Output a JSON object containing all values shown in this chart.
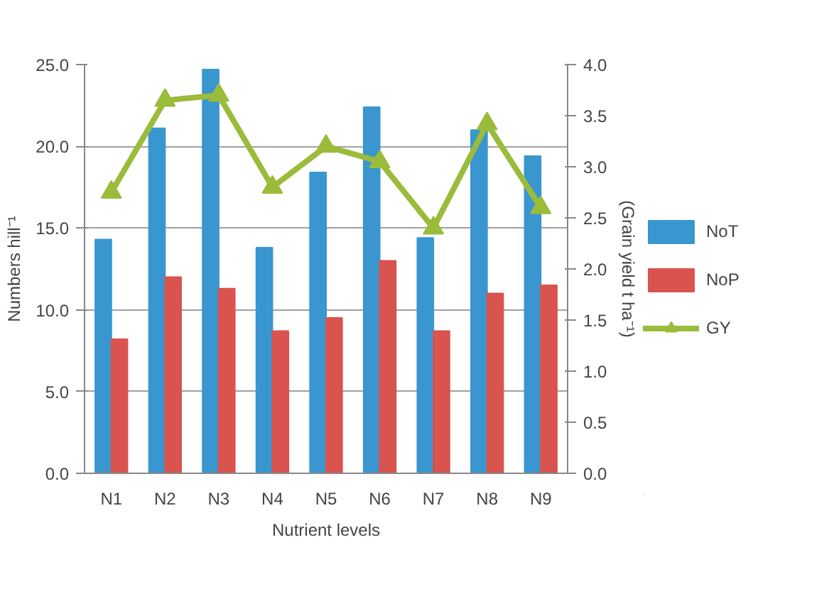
{
  "chart_data": {
    "type": "bar",
    "xlabel": "Nutrient levels",
    "ylabel": "Numbers hill⁻¹",
    "y2label": "(Grain yield t ha⁻¹)",
    "categories": [
      "N1",
      "N2",
      "N3",
      "N4",
      "N5",
      "N6",
      "N7",
      "N8",
      "N9"
    ],
    "series": [
      {
        "name": "NoT",
        "color": "#3a96cf",
        "values": [
          14.3,
          21.1,
          24.7,
          13.8,
          18.4,
          22.4,
          14.4,
          21.0,
          19.4
        ]
      },
      {
        "name": "NoP",
        "color": "#d9534f",
        "values": [
          8.2,
          12.0,
          11.3,
          8.7,
          9.5,
          13.0,
          8.7,
          11.0,
          11.5
        ]
      },
      {
        "name": "GY",
        "type": "line",
        "axis": "y2",
        "color": "#9bbb3b",
        "marker": "triangle",
        "values": [
          2.75,
          3.65,
          3.7,
          2.8,
          3.2,
          3.05,
          2.4,
          3.42,
          2.6
        ]
      }
    ],
    "ylim": [
      0,
      25
    ],
    "yticks": [
      {
        "value": 0,
        "label": "0.0"
      },
      {
        "value": 5,
        "label": "5.0"
      },
      {
        "value": 10,
        "label": "10.0"
      },
      {
        "value": 15,
        "label": "15.0"
      },
      {
        "value": 20,
        "label": "20.0"
      },
      {
        "value": 25,
        "label": "25.0"
      }
    ],
    "y2lim": [
      0,
      4
    ],
    "y2ticks": [
      {
        "value": 0,
        "label": "0.0"
      },
      {
        "value": 0.5,
        "label": "0.5"
      },
      {
        "value": 1,
        "label": "1.0"
      },
      {
        "value": 1.5,
        "label": "1.5"
      },
      {
        "value": 2,
        "label": "2.0"
      },
      {
        "value": 2.5,
        "label": "2.5"
      },
      {
        "value": 3,
        "label": "3.0"
      },
      {
        "value": 3.5,
        "label": "3.5"
      },
      {
        "value": 4,
        "label": "4.0"
      }
    ],
    "grid": "y",
    "legend": "right"
  }
}
